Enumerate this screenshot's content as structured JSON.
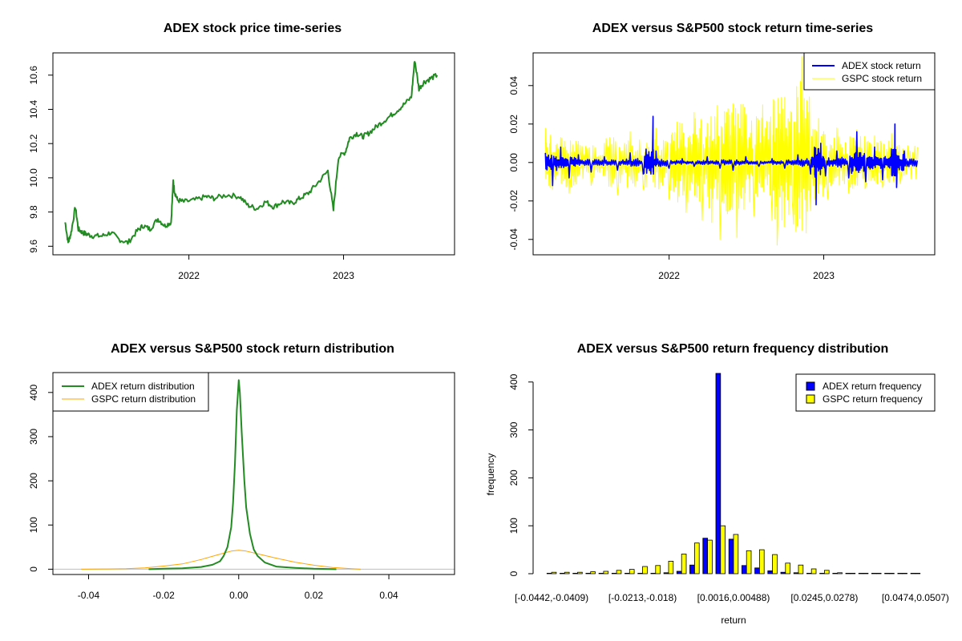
{
  "chart_data": [
    {
      "id": "price",
      "type": "line",
      "title": "ADEX stock price time-series",
      "xlabel": "",
      "ylabel": "",
      "x_axis": "date",
      "x_ticks": [
        "2022",
        "2023"
      ],
      "y_ticks": [
        "9.6",
        "9.8",
        "10.0",
        "10.2",
        "10.4",
        "10.6"
      ],
      "xlim": [
        "2021-02-14",
        "2023-09-20"
      ],
      "ylim": [
        9.55,
        10.73
      ],
      "grid": false,
      "color": "#228B22",
      "series": [
        {
          "x": [
            "2021-03-15",
            "2021-03-22",
            "2021-03-29",
            "2021-04-08",
            "2021-04-15",
            "2021-04-25",
            "2021-05-05",
            "2021-05-20",
            "2021-06-10",
            "2021-07-01",
            "2021-07-20",
            "2021-08-10",
            "2021-09-01",
            "2021-09-15",
            "2021-10-01",
            "2021-10-20",
            "2021-11-05",
            "2021-11-20",
            "2021-11-25",
            "2021-11-28",
            "2021-12-05",
            "2021-12-20",
            "2022-01-15",
            "2022-02-10",
            "2022-03-01",
            "2022-04-01",
            "2022-05-01",
            "2022-05-20",
            "2022-06-10",
            "2022-07-01",
            "2022-07-20",
            "2022-08-10",
            "2022-09-01",
            "2022-09-20",
            "2022-10-10",
            "2022-11-01",
            "2022-11-25",
            "2022-12-08",
            "2022-12-20",
            "2023-01-05",
            "2023-01-15",
            "2023-02-01",
            "2023-02-15",
            "2023-03-01",
            "2023-03-20",
            "2023-04-10",
            "2023-05-01",
            "2023-05-20",
            "2023-06-10",
            "2023-06-18",
            "2023-06-28",
            "2023-07-10",
            "2023-07-25",
            "2023-08-10"
          ],
          "y": [
            9.74,
            9.62,
            9.68,
            9.83,
            9.7,
            9.68,
            9.67,
            9.66,
            9.66,
            9.68,
            9.64,
            9.62,
            9.69,
            9.72,
            9.7,
            9.76,
            9.72,
            9.74,
            9.98,
            9.92,
            9.87,
            9.86,
            9.87,
            9.89,
            9.88,
            9.9,
            9.89,
            9.84,
            9.82,
            9.86,
            9.83,
            9.86,
            9.85,
            9.88,
            9.91,
            9.97,
            10.04,
            9.81,
            10.12,
            10.15,
            10.23,
            10.26,
            10.24,
            10.26,
            10.3,
            10.34,
            10.38,
            10.42,
            10.47,
            10.69,
            10.52,
            10.56,
            10.58,
            10.6
          ]
        }
      ]
    },
    {
      "id": "returns",
      "type": "line",
      "title": "ADEX versus S&P500 stock return time-series",
      "xlabel": "",
      "ylabel": "",
      "x_axis": "date",
      "x_ticks": [
        "2022",
        "2023"
      ],
      "y_ticks": [
        "-0.04",
        "-0.02",
        "0.00",
        "0.02",
        "0.04"
      ],
      "xlim": [
        "2021-02-14",
        "2023-09-20"
      ],
      "ylim": [
        -0.048,
        0.057
      ],
      "grid": false,
      "legend": "top-right",
      "series": [
        {
          "name": "ADEX stock return",
          "color": "#0000FF",
          "x": [
            "2021-03-15",
            "2021-04-01",
            "2021-04-20",
            "2021-05-10",
            "2021-06-01",
            "2021-07-01",
            "2021-08-01",
            "2021-09-01",
            "2021-10-01",
            "2021-11-01",
            "2021-11-24",
            "2021-11-25",
            "2021-12-01",
            "2022-01-01",
            "2022-02-01",
            "2022-03-01",
            "2022-04-01",
            "2022-05-01",
            "2022-06-01",
            "2022-07-01",
            "2022-08-01",
            "2022-09-01",
            "2022-10-01",
            "2022-11-01",
            "2022-12-01",
            "2022-12-10",
            "2022-12-14",
            "2022-12-25",
            "2023-01-05",
            "2023-02-01",
            "2023-03-01",
            "2023-03-20",
            "2023-04-10",
            "2023-05-01",
            "2023-05-20",
            "2023-06-10",
            "2023-06-18",
            "2023-06-22",
            "2023-07-10",
            "2023-08-10"
          ],
          "y": [
            0.005,
            -0.012,
            0.008,
            -0.008,
            0.004,
            -0.005,
            0.003,
            -0.004,
            0.005,
            -0.006,
            0.024,
            -0.006,
            0.006,
            -0.003,
            0.002,
            -0.002,
            0.003,
            -0.003,
            -0.004,
            0.003,
            -0.002,
            0.002,
            -0.003,
            0.004,
            -0.006,
            0.008,
            -0.022,
            0.01,
            -0.007,
            0.006,
            -0.008,
            0.016,
            -0.01,
            0.008,
            -0.009,
            0.007,
            0.02,
            -0.013,
            0.006,
            0.001
          ]
        },
        {
          "name": "GSPC stock return",
          "color": "#FFFF00",
          "x": [
            "2021-03-15",
            "2021-04-01",
            "2021-04-20",
            "2021-05-10",
            "2021-06-01",
            "2021-07-01",
            "2021-08-01",
            "2021-09-01",
            "2021-10-01",
            "2021-11-01",
            "2021-12-01",
            "2022-01-01",
            "2022-01-20",
            "2022-02-10",
            "2022-03-01",
            "2022-03-20",
            "2022-04-10",
            "2022-05-01",
            "2022-05-20",
            "2022-06-10",
            "2022-07-01",
            "2022-07-20",
            "2022-08-10",
            "2022-09-01",
            "2022-09-13",
            "2022-10-01",
            "2022-10-20",
            "2022-11-10",
            "2022-12-01",
            "2022-12-20",
            "2023-01-10",
            "2023-02-01",
            "2023-03-01",
            "2023-03-20",
            "2023-04-10",
            "2023-05-01",
            "2023-05-20",
            "2023-06-10",
            "2023-07-01",
            "2023-08-10"
          ],
          "y": [
            0.018,
            -0.014,
            0.013,
            -0.016,
            0.011,
            -0.012,
            0.01,
            -0.017,
            0.016,
            -0.014,
            0.018,
            -0.019,
            0.021,
            -0.026,
            0.026,
            -0.03,
            0.024,
            -0.04,
            0.028,
            -0.039,
            0.025,
            -0.028,
            0.03,
            -0.03,
            -0.043,
            0.034,
            -0.025,
            0.055,
            -0.025,
            0.023,
            -0.019,
            0.018,
            -0.016,
            0.017,
            -0.013,
            0.014,
            -0.013,
            0.015,
            -0.011,
            0.008
          ]
        }
      ]
    },
    {
      "id": "density",
      "type": "line",
      "title": "ADEX versus S&P500 stock return distribution",
      "xlabel": "",
      "ylabel": "",
      "x_ticks": [
        "-0.04",
        "-0.02",
        "0.00",
        "0.02",
        "0.04"
      ],
      "y_ticks": [
        "0",
        "100",
        "200",
        "300",
        "400"
      ],
      "xlim": [
        -0.0495,
        0.0575
      ],
      "ylim": [
        -12,
        445
      ],
      "grid": false,
      "legend": "top-left",
      "series": [
        {
          "name": "ADEX return distribution",
          "color": "#228B22",
          "x": [
            -0.024,
            -0.02,
            -0.015,
            -0.01,
            -0.007,
            -0.005,
            -0.004,
            -0.003,
            -0.002,
            -0.0015,
            -0.001,
            -0.0005,
            0.0,
            0.0003,
            0.0008,
            0.0015,
            0.002,
            0.003,
            0.004,
            0.005,
            0.007,
            0.01,
            0.015,
            0.02,
            0.026
          ],
          "y": [
            0,
            1,
            2,
            5,
            10,
            18,
            30,
            50,
            95,
            150,
            240,
            360,
            428,
            400,
            310,
            200,
            140,
            80,
            45,
            30,
            15,
            6,
            3,
            1,
            0
          ]
        },
        {
          "name": "GSPC return distribution",
          "color": "#FFA500",
          "x": [
            -0.042,
            -0.035,
            -0.03,
            -0.025,
            -0.02,
            -0.015,
            -0.01,
            -0.005,
            -0.002,
            0.0,
            0.002,
            0.005,
            0.01,
            0.015,
            0.02,
            0.025,
            0.03,
            0.0325
          ],
          "y": [
            0,
            0.5,
            1,
            3,
            7,
            12,
            22,
            34,
            41,
            43,
            41,
            35,
            25,
            16,
            9,
            4,
            1,
            0
          ]
        }
      ]
    },
    {
      "id": "frequency",
      "type": "bar",
      "title": "ADEX versus S&P500 return frequency distribution",
      "xlabel": "return",
      "ylabel": "frequency",
      "x_tick_labels": [
        "[-0.0442,-0.0409)",
        "[-0.0213,-0.018)",
        "[0.0016,0.00488)",
        "[0.0245,0.0278)",
        "[0.0474,0.0507)"
      ],
      "x_tick_positions": [
        0,
        7,
        14,
        21,
        28
      ],
      "bin_count": 29,
      "y_ticks": [
        "0",
        "100",
        "200",
        "300",
        "400"
      ],
      "ylim": [
        0,
        418
      ],
      "grid": false,
      "legend": "top-right",
      "series": [
        {
          "name": "ADEX return frequency",
          "color": "#0000FF",
          "values": [
            1,
            0,
            0,
            0,
            0,
            0,
            1,
            1,
            1,
            2,
            5,
            18,
            74,
            418,
            72,
            17,
            12,
            6,
            3,
            2,
            1,
            1,
            0,
            0,
            0,
            0,
            0,
            0,
            0
          ]
        },
        {
          "name": "GSPC return frequency",
          "color": "#FFFF00",
          "values": [
            3,
            3,
            3,
            4,
            5,
            7,
            9,
            15,
            17,
            26,
            41,
            64,
            70,
            100,
            82,
            48,
            50,
            40,
            22,
            18,
            10,
            7,
            2,
            1,
            1,
            1,
            0,
            0,
            0
          ]
        }
      ]
    }
  ]
}
